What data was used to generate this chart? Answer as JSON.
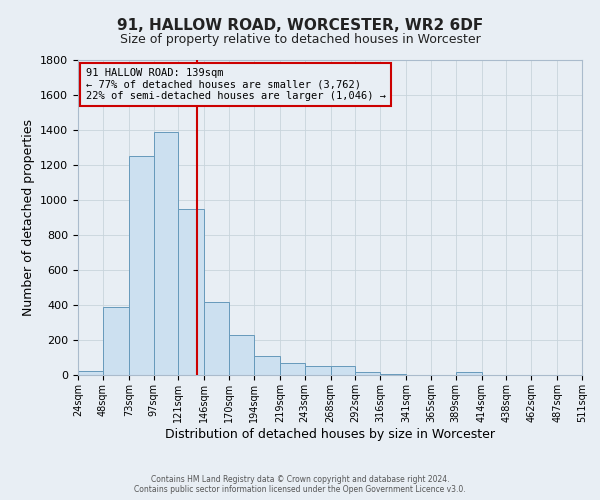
{
  "title_line1": "91, HALLOW ROAD, WORCESTER, WR2 6DF",
  "title_line2": "Size of property relative to detached houses in Worcester",
  "xlabel": "Distribution of detached houses by size in Worcester",
  "ylabel": "Number of detached properties",
  "bar_edges": [
    24,
    48,
    73,
    97,
    121,
    146,
    170,
    194,
    219,
    243,
    268,
    292,
    316,
    341,
    365,
    389,
    414,
    438,
    462,
    487,
    511
  ],
  "bar_heights": [
    25,
    390,
    1250,
    1390,
    950,
    415,
    230,
    110,
    70,
    50,
    50,
    15,
    5,
    0,
    0,
    15,
    0,
    0,
    0,
    0
  ],
  "bar_color": "#cce0f0",
  "bar_edge_color": "#6699bb",
  "vline_x": 139,
  "vline_color": "#cc0000",
  "ylim": [
    0,
    1800
  ],
  "yticks": [
    0,
    200,
    400,
    600,
    800,
    1000,
    1200,
    1400,
    1600,
    1800
  ],
  "annotation_title": "91 HALLOW ROAD: 139sqm",
  "annotation_line1": "← 77% of detached houses are smaller (3,762)",
  "annotation_line2": "22% of semi-detached houses are larger (1,046) →",
  "annotation_box_color": "#cc0000",
  "footer_line1": "Contains HM Land Registry data © Crown copyright and database right 2024.",
  "footer_line2": "Contains public sector information licensed under the Open Government Licence v3.0.",
  "bg_color": "#e8eef4",
  "grid_color": "#c8d4dc",
  "title_fontsize": 11,
  "subtitle_fontsize": 9,
  "xlabel_fontsize": 9,
  "ylabel_fontsize": 9
}
